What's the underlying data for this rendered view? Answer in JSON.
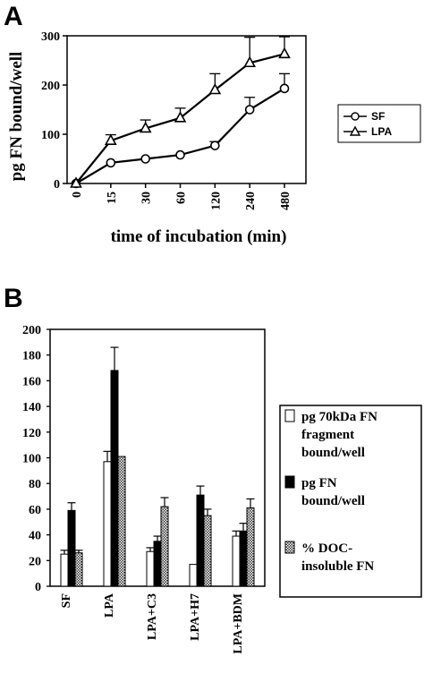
{
  "chart_data": [
    {
      "panel": "A",
      "type": "line",
      "categories": [
        "0",
        "15",
        "30",
        "60",
        "120",
        "240",
        "480"
      ],
      "xlabel": "time of incubation (min)",
      "ylabel": "pg FN bound/well",
      "ylim": [
        0,
        300
      ],
      "yticks": [
        "0",
        "100",
        "200",
        "300"
      ],
      "grid": false,
      "legend_position": "right",
      "series": [
        {
          "name": "SF",
          "marker": "circle",
          "values": [
            0,
            42,
            50,
            58,
            77,
            150,
            193
          ],
          "errors": [
            0,
            0,
            0,
            0,
            8,
            25,
            30
          ]
        },
        {
          "name": "LPA",
          "marker": "triangle",
          "values": [
            0,
            87,
            112,
            133,
            190,
            245,
            263
          ],
          "errors": [
            0,
            12,
            17,
            20,
            33,
            52,
            35
          ]
        }
      ]
    },
    {
      "panel": "B",
      "type": "bar",
      "categories": [
        "SF",
        "LPA",
        "LPA+C3",
        "LPA+H7",
        "LPA+BDM"
      ],
      "ylim": [
        0,
        200
      ],
      "yticks": [
        "0",
        "20",
        "40",
        "60",
        "80",
        "100",
        "120",
        "140",
        "160",
        "180",
        "200"
      ],
      "grid": false,
      "legend_position": "right",
      "series": [
        {
          "name": "pg 70kDa FN fragment bound/well",
          "fill": "white",
          "values": [
            25,
            97,
            27,
            17,
            39
          ],
          "errors": [
            3,
            8,
            3,
            0,
            4
          ]
        },
        {
          "name": "pg FN bound/well",
          "fill": "black",
          "values": [
            59,
            168,
            35,
            71,
            43
          ],
          "errors": [
            6,
            18,
            4,
            7,
            6
          ]
        },
        {
          "name": "% DOC-insoluble FN",
          "fill": "checker",
          "values": [
            26,
            101,
            62,
            55,
            61
          ],
          "errors": [
            2,
            0,
            7,
            5,
            7
          ]
        }
      ],
      "legend_lines": [
        [
          "pg 70kDa FN",
          "fragment",
          "bound/well"
        ],
        [
          "pg FN",
          "bound/well"
        ],
        [
          "% DOC-",
          "insoluble FN"
        ]
      ]
    }
  ]
}
